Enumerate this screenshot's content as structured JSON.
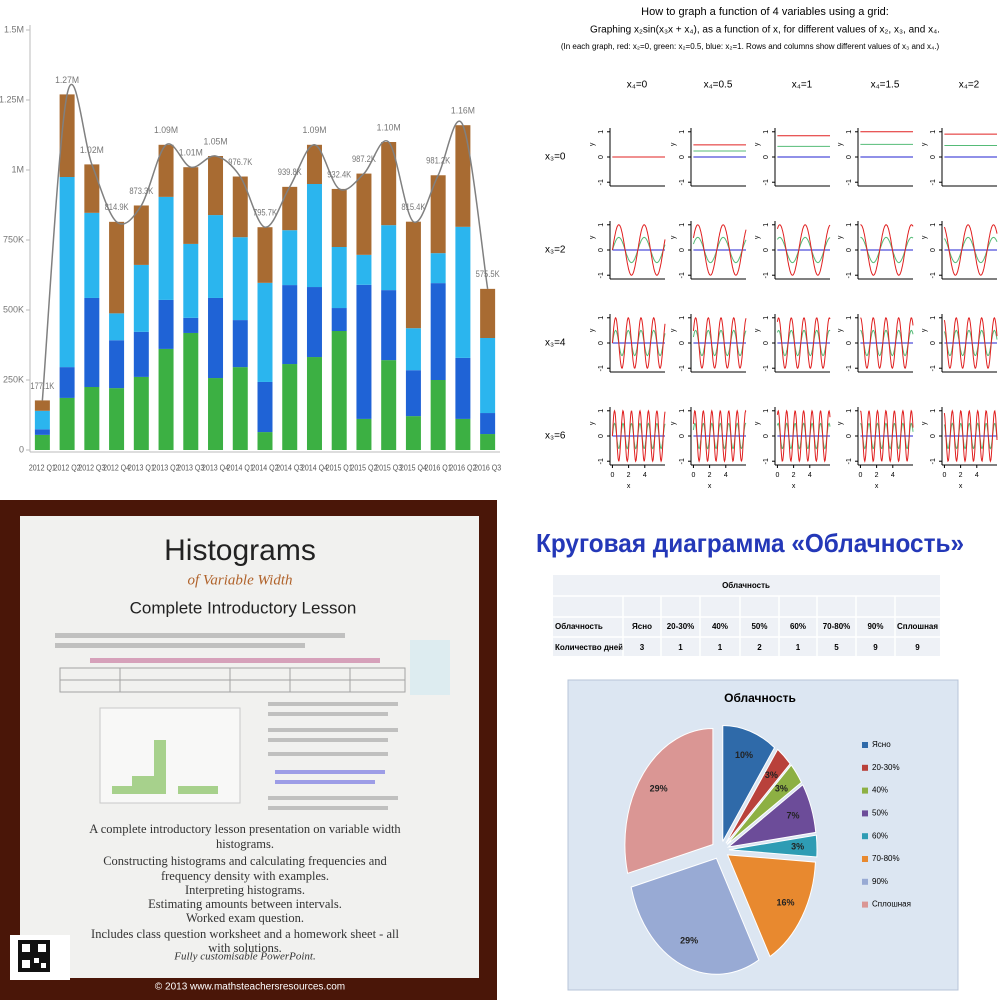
{
  "chart_data": [
    {
      "type": "bar",
      "stacked": true,
      "categories": [
        "2012 Q1",
        "2012 Q2",
        "2012 Q3",
        "2012 Q4",
        "2013 Q1",
        "2013 Q2",
        "2013 Q3",
        "2013 Q4",
        "2014 Q1",
        "2014 Q2",
        "2014 Q3",
        "2014 Q4",
        "2015 Q1",
        "2015 Q2",
        "2015 Q3",
        "2015 Q4",
        "2016 Q1",
        "2016 Q2",
        "2016 Q3"
      ],
      "series": [
        {
          "color": "#3cb043",
          "values": [
            54000,
            186000,
            225000,
            221000,
            261000,
            361000,
            418000,
            257000,
            296000,
            64000,
            307000,
            332000,
            425000,
            111000,
            321000,
            121000,
            250000,
            111000,
            57000
          ]
        },
        {
          "color": "#1f63d6",
          "values": [
            20000,
            110000,
            318000,
            171000,
            161000,
            175000,
            54000,
            286000,
            168000,
            179000,
            282000,
            250000,
            82000,
            479000,
            250000,
            164000,
            346000,
            218000,
            75000
          ]
        },
        {
          "color": "#2bb5ee",
          "values": [
            66000,
            679000,
            304000,
            96000,
            239000,
            368000,
            264000,
            296000,
            296000,
            354000,
            196000,
            368000,
            218000,
            107000,
            232000,
            150000,
            107000,
            468000,
            268000
          ]
        },
        {
          "color": "#a86b32",
          "values": [
            37100,
            295000,
            173000,
            326900,
            212300,
            186000,
            274000,
            211000,
            216700,
            198700,
            154800,
            140000,
            207400,
            290200,
            297000,
            380400,
            278200,
            363000,
            175500
          ]
        },
        {
          "type": "line",
          "color": "#808080",
          "values": [
            177100,
            1270000,
            1020000,
            814900,
            873300,
            1090000,
            1010000,
            1050000,
            976700,
            795700,
            939800,
            1090000,
            932400,
            987200,
            1100000,
            815400,
            981200,
            1160000,
            575500
          ],
          "value_labels": [
            "177.1K",
            "1.27M",
            "1.02M",
            "814.9K",
            "873.3K",
            "1.09M",
            "1.01M",
            "1.05M",
            "976.7K",
            "795.7K",
            "939.8K",
            "1.09M",
            "932.4K",
            "987.2K",
            "1.10M",
            "815.4K",
            "981.2K",
            "1.16M",
            "575.5K"
          ]
        }
      ],
      "ylim": [
        0,
        1500000
      ],
      "yticks": [
        0,
        {
          "value": 250000,
          "label": "250K"
        },
        {
          "value": 500000,
          "label": "500K"
        },
        {
          "value": 750000,
          "label": "750K"
        },
        {
          "value": 1000000,
          "label": "1M"
        },
        {
          "value": 1250000,
          "label": "1.25M"
        },
        {
          "value": 1500000,
          "label": "1.5M"
        }
      ]
    },
    {
      "type": "pie",
      "title": "Облачность",
      "categories": [
        "Ясно",
        "20-30%",
        "40%",
        "50%",
        "60%",
        "70-80%",
        "90%",
        "Сплошная"
      ],
      "values": [
        10,
        3,
        3,
        7,
        3,
        16,
        29,
        29
      ],
      "value_labels": [
        "10%",
        "3%",
        "3%",
        "7%",
        "3%",
        "16%",
        "29%",
        "29%"
      ],
      "colors": [
        "#2f6aa9",
        "#b9413b",
        "#8db043",
        "#6c4c99",
        "#2e9cb4",
        "#e8892f",
        "#98aad4",
        "#da9694"
      ],
      "legend": "right"
    }
  ],
  "function_grid": {
    "title": "How to graph a function of 4 variables using a grid:",
    "subtitle": "Graphing x₂sin(x₃x + x₄), as a function of x, for different values of x₂, x₃, and x₄.",
    "note": "(In each graph, red: x₂=0, green: x₂=0.5, blue: x₂=1.  Rows and columns show different values of x₃ and x₄.)",
    "columns": [
      {
        "x4": 0,
        "label": "x₄=0"
      },
      {
        "x4": 0.5,
        "label": "x₄=0.5"
      },
      {
        "x4": 1,
        "label": "x₄=1"
      },
      {
        "x4": 1.5,
        "label": "x₄=1.5"
      },
      {
        "x4": 2,
        "label": "x₄=2"
      }
    ],
    "rows": [
      {
        "x3": 0,
        "label": "x₃=0"
      },
      {
        "x3": 2,
        "label": "x₃=2"
      },
      {
        "x3": 4,
        "label": "x₃=4"
      },
      {
        "x3": 6,
        "label": "x₃=6"
      }
    ],
    "curves": [
      {
        "color": "#2020d0",
        "x2": 1
      },
      {
        "color": "#55bb77",
        "x2": 0.5
      },
      {
        "color": "#e02020",
        "x2": 0
      }
    ],
    "xlim": [
      -0.3,
      6.5
    ],
    "ylim": [
      -1.15,
      1.15
    ],
    "xticks": [
      0,
      2,
      4
    ],
    "yticks": [
      1,
      0,
      -1
    ],
    "xlabel": "x",
    "ylabel": "y"
  },
  "poster": {
    "title": "Histograms",
    "subtitle": "of Variable Width",
    "heading": "Complete Introductory Lesson",
    "lines": [
      "A complete introductory lesson presentation on variable width",
      "histograms.",
      "Constructing histograms and calculating frequencies and",
      "frequency density with examples.",
      "Interpreting histograms.",
      "Estimating amounts between intervals.",
      "Worked exam question.",
      "Includes class question worksheet and a homework sheet - all",
      "with solutions."
    ],
    "tagline": "Fully customisable PowerPoint.",
    "footer": "© 2013 www.mathsteachersresources.com"
  },
  "cloud_table": {
    "heading": "Круговая диаграмма «Облачность»",
    "title": "Облачность",
    "row_label": "Облачность",
    "count_label": "Количество дней",
    "categories": [
      "Ясно",
      "20-30%",
      "40%",
      "50%",
      "60%",
      "70-80%",
      "90%",
      "Сплошная"
    ],
    "days": [
      3,
      1,
      1,
      2,
      1,
      5,
      9,
      9
    ]
  }
}
